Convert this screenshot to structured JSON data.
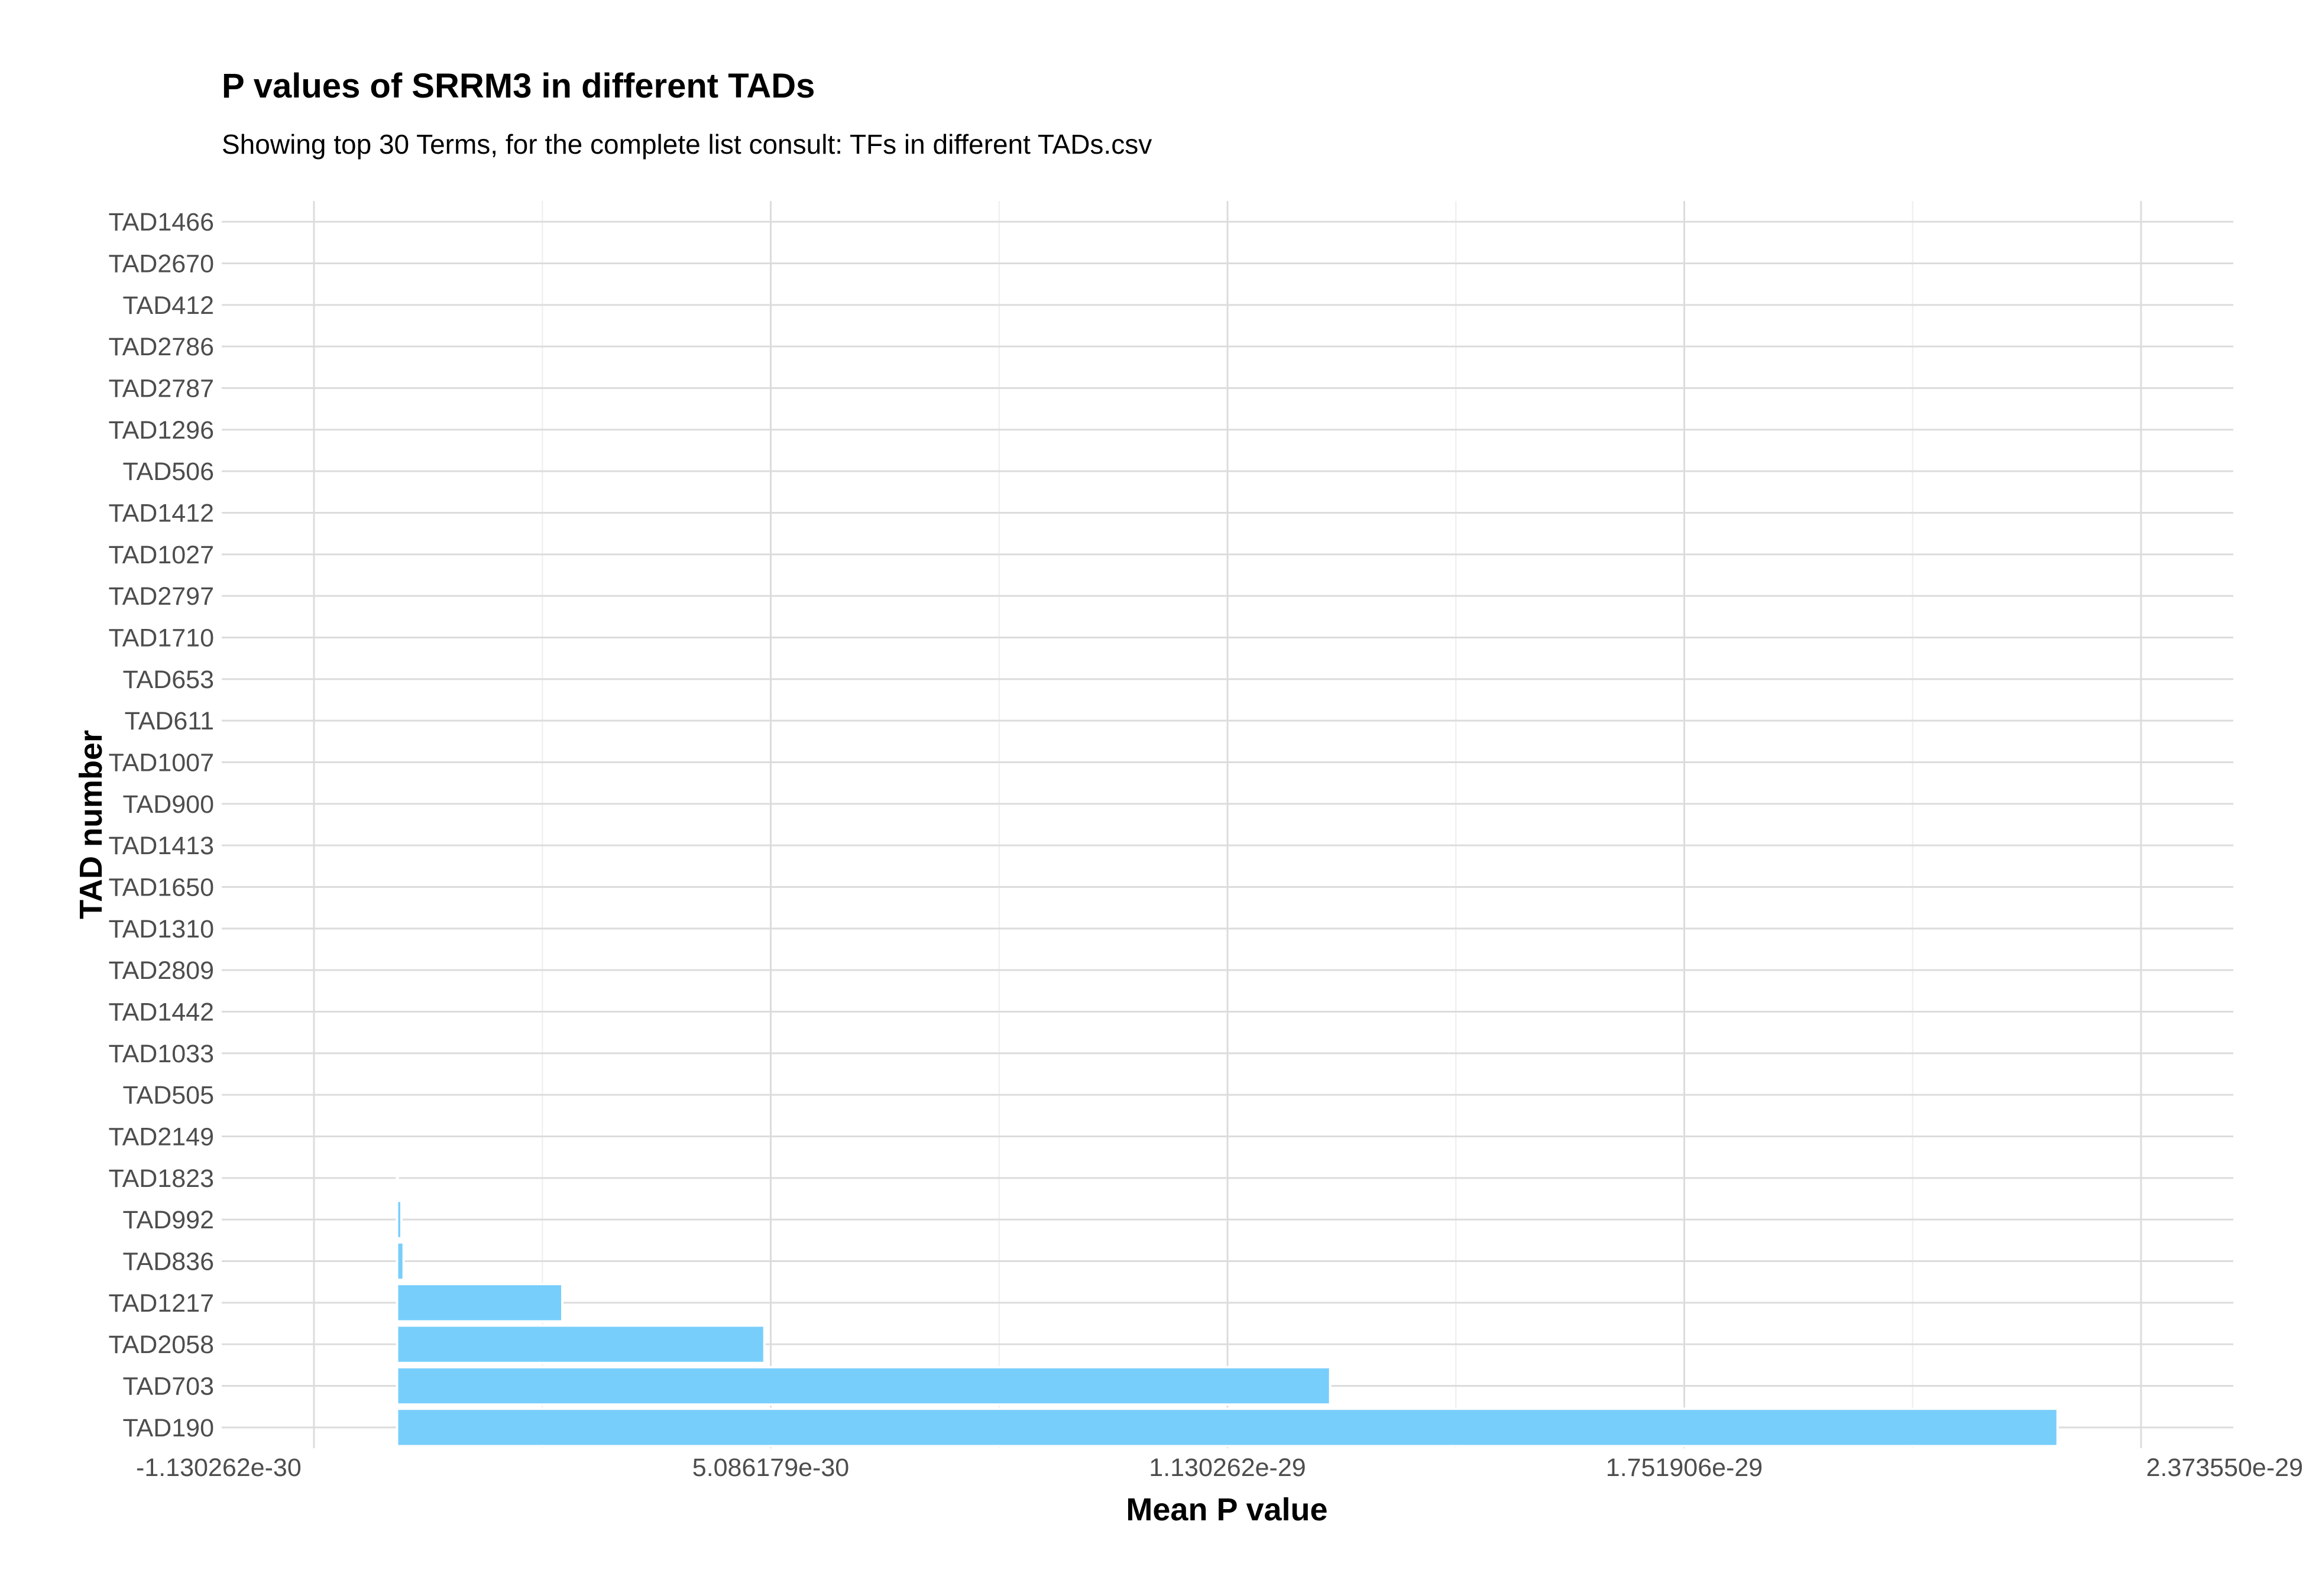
{
  "chart_data": {
    "type": "bar",
    "orientation": "horizontal",
    "title": "P values of SRRM3 in different TADs",
    "subtitle": "Showing top 30 Terms, for the complete list consult: TFs in different TADs.csv",
    "xlabel": "Mean P value",
    "ylabel": "TAD number",
    "categories": [
      "TAD1466",
      "TAD2670",
      "TAD412",
      "TAD2786",
      "TAD2787",
      "TAD1296",
      "TAD506",
      "TAD1412",
      "TAD1027",
      "TAD2797",
      "TAD1710",
      "TAD653",
      "TAD611",
      "TAD1007",
      "TAD900",
      "TAD1413",
      "TAD1650",
      "TAD1310",
      "TAD2809",
      "TAD1442",
      "TAD1033",
      "TAD505",
      "TAD2149",
      "TAD1823",
      "TAD992",
      "TAD836",
      "TAD1217",
      "TAD2058",
      "TAD703",
      "TAD190"
    ],
    "values": [
      1e-40,
      1e-40,
      1e-40,
      1e-40,
      1e-40,
      1e-40,
      1e-40,
      1e-40,
      1e-40,
      1e-40,
      1e-40,
      1e-40,
      1e-40,
      1e-40,
      1e-40,
      1e-40,
      1e-40,
      1e-40,
      1e-40,
      1e-40,
      1e-40,
      1e-40,
      1e-40,
      1e-32,
      6e-32,
      9e-32,
      2.25e-30,
      5e-30,
      1.27e-29,
      2.26e-29
    ],
    "xticks": [
      "-1.130262e-30",
      "5.086179e-30",
      "1.130262e-29",
      "1.751906e-29",
      "2.373550e-29"
    ],
    "xtick_values": [
      -1.130262e-30,
      5.086179e-30,
      1.130262e-29,
      1.751906e-29,
      2.37355e-29
    ],
    "xlim": [
      -1.130262e-30,
      2.37355e-29
    ],
    "grid": true,
    "legend": "none",
    "bar_color": "#78cefb",
    "bar_edge_color": "#ffffff"
  }
}
